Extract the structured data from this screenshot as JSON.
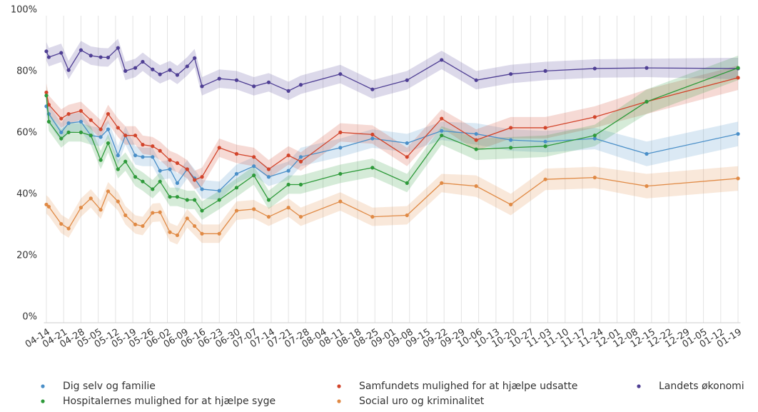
{
  "chart_data": {
    "type": "line",
    "x": [
      "04-14",
      "04-15",
      "04-20",
      "04-23",
      "04-28",
      "05-02",
      "05-06",
      "05-09",
      "05-13",
      "05-16",
      "05-20",
      "05-23",
      "05-27",
      "05-30",
      "06-03",
      "06-06",
      "06-10",
      "06-13",
      "06-16",
      "06-23",
      "06-30",
      "07-07",
      "07-13",
      "07-21",
      "07-26",
      "08-11",
      "08-24",
      "09-07",
      "09-21",
      "10-05",
      "10-19",
      "11-02",
      "11-22",
      "12-13",
      "01-19"
    ],
    "xlim": [
      "04-13",
      "01-20"
    ],
    "xticks": [
      "04-14",
      "04-21",
      "04-28",
      "05-05",
      "05-12",
      "05-19",
      "05-26",
      "06-02",
      "06-09",
      "06-16",
      "06-23",
      "06-30",
      "07-07",
      "07-14",
      "07-21",
      "07-28",
      "08-04",
      "08-11",
      "08-18",
      "08-25",
      "09-01",
      "09-08",
      "09-15",
      "09-22",
      "09-29",
      "10-06",
      "10-13",
      "10-20",
      "10-27",
      "11-03",
      "11-10",
      "11-17",
      "11-24",
      "12-01",
      "12-08",
      "12-15",
      "12-22",
      "12-29",
      "01-05",
      "01-12",
      "01-19"
    ],
    "ylim": [
      0,
      100
    ],
    "yticks": [
      {
        "value": 0,
        "label": "0%"
      },
      {
        "value": 20,
        "label": "20%"
      },
      {
        "value": 40,
        "label": "40%"
      },
      {
        "value": 60,
        "label": "60%"
      },
      {
        "value": 80,
        "label": "80%"
      },
      {
        "value": 100,
        "label": "100%"
      }
    ],
    "grid": "x",
    "legend": "bottom",
    "series": [
      {
        "name": "Dig selv og familie",
        "color": "#4a8fc8",
        "values": [
          70.5,
          68,
          62,
          65,
          65.5,
          61,
          60.5,
          63,
          54.5,
          61,
          54.5,
          54,
          54,
          49.5,
          50,
          45.5,
          50,
          47,
          43.5,
          43,
          48.5,
          51,
          47.5,
          49.5,
          54,
          57,
          60,
          58.5,
          62.5,
          61.5,
          59.5,
          59,
          60,
          55,
          61.5
        ],
        "error": [
          3,
          3,
          3,
          3,
          3,
          3,
          3,
          3,
          3,
          3,
          3,
          3,
          3,
          3,
          3,
          3,
          3,
          3,
          3,
          3,
          3,
          3,
          3,
          3,
          3,
          3,
          3,
          3,
          3,
          3.5,
          3.5,
          3.5,
          3.5,
          4,
          4
        ]
      },
      {
        "name": "Samfundets mulighed for at hjælpe udsatte",
        "color": "#d2442b",
        "values": [
          75,
          71,
          66.5,
          68,
          69,
          66,
          63,
          68,
          63.5,
          61,
          61,
          58,
          57.5,
          56,
          53,
          52,
          50,
          46.5,
          47.5,
          57,
          55,
          54,
          50,
          54.5,
          52.5,
          62,
          61.3,
          54,
          66.5,
          59.5,
          63.5,
          63.5,
          67,
          72,
          79.8
        ],
        "error": [
          3,
          3,
          3,
          3,
          3,
          3,
          3,
          3,
          3,
          3,
          3,
          3,
          3,
          3,
          3,
          3,
          3,
          3,
          3,
          3,
          3,
          3,
          3,
          3,
          3,
          3,
          3,
          3,
          3,
          3.5,
          3.5,
          3.5,
          3.5,
          4,
          4
        ]
      },
      {
        "name": "Landets økonomi",
        "color": "#4f3f94",
        "values": [
          88.4,
          86.5,
          87.9,
          82.3,
          88.8,
          87,
          86.5,
          86.4,
          89.5,
          82,
          83,
          85,
          82.5,
          80.9,
          82.3,
          80.7,
          83.5,
          86.2,
          77,
          79.5,
          79,
          77,
          78.3,
          75.5,
          77.5,
          81,
          76,
          79,
          85.6,
          79,
          81,
          82,
          82.8,
          83,
          82.8
        ],
        "error": [
          3,
          3,
          3,
          3,
          3,
          3,
          3,
          3,
          3,
          3,
          3,
          3,
          3,
          3,
          3,
          3,
          3,
          3,
          3,
          3,
          3,
          3,
          3,
          3,
          3,
          3,
          3,
          3,
          3,
          3,
          3,
          3,
          3,
          3,
          3.5
        ]
      },
      {
        "name": "Hospitalernes mulighed for at hjælpe syge",
        "color": "#2e9a3a",
        "values": [
          74,
          65.5,
          60,
          62,
          62,
          61,
          53,
          58.5,
          50,
          52.5,
          47.5,
          46,
          43.5,
          46,
          41,
          41,
          40,
          40,
          36.5,
          40,
          44,
          48,
          40,
          45,
          45,
          48.5,
          50.5,
          45.5,
          61,
          56.5,
          57,
          57.5,
          61,
          72,
          83
        ],
        "error": [
          3,
          3,
          3,
          3,
          3,
          3,
          3,
          3,
          3,
          3,
          3,
          3,
          3,
          3,
          3,
          3,
          3,
          3,
          3,
          3,
          3,
          3,
          3,
          3,
          3,
          3,
          3,
          3,
          3,
          3.5,
          3.5,
          3.5,
          3.5,
          4,
          4
        ]
      },
      {
        "name": "Social uro og kriminalitet",
        "color": "#e08a45",
        "values": [
          38.5,
          37.8,
          32.2,
          30.7,
          37.5,
          40.5,
          36.8,
          42.8,
          39.5,
          35,
          32,
          31.5,
          35.8,
          36,
          29.5,
          28.5,
          34,
          31.5,
          29,
          29,
          36.5,
          37,
          34.5,
          37.5,
          34.5,
          39.5,
          34.5,
          35,
          45.5,
          44.5,
          38.5,
          46.7,
          47.3,
          44.5,
          47
        ],
        "error": [
          3,
          3,
          3,
          3,
          3,
          3,
          3,
          3,
          3,
          3,
          3,
          3,
          3,
          3,
          3,
          3,
          3,
          3,
          3,
          3,
          3,
          3,
          3,
          3,
          3,
          3,
          3,
          3,
          3,
          3.5,
          3.5,
          3.5,
          3.5,
          4,
          4
        ]
      }
    ]
  }
}
